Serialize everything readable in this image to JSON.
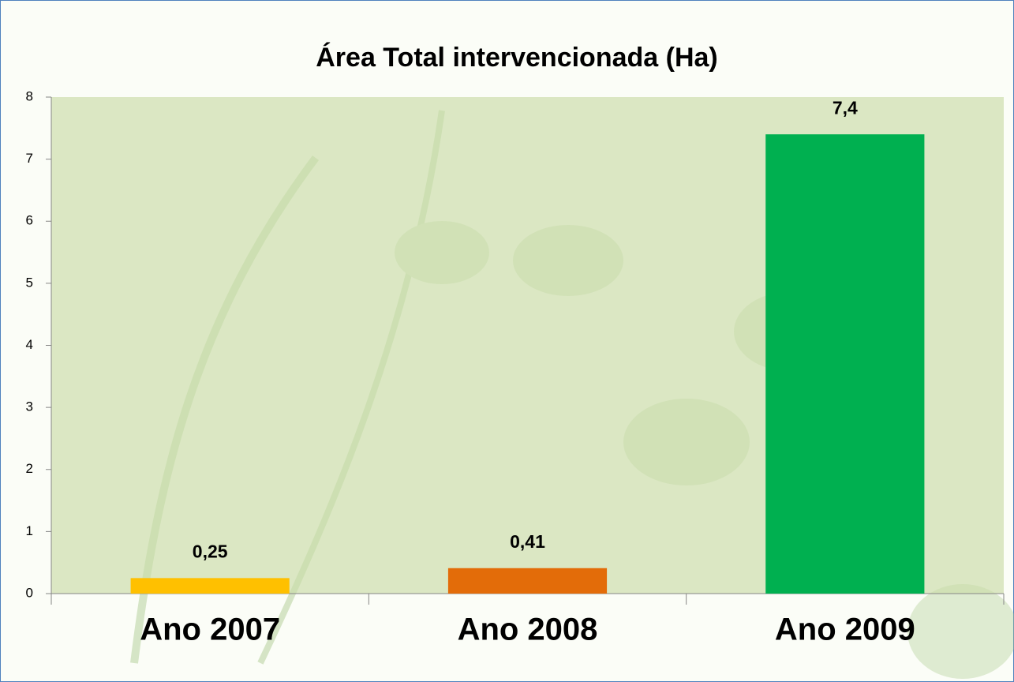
{
  "chart_data": {
    "type": "bar",
    "title": "Área Total  intervencionada  (Ha)",
    "categories": [
      "Ano 2007",
      "Ano 2008",
      "Ano 2009"
    ],
    "values": [
      0.25,
      0.41,
      7.4
    ],
    "value_labels": [
      "0,25",
      "0,41",
      "7,4"
    ],
    "colors": [
      "#ffc000",
      "#e36c09",
      "#00b050"
    ],
    "ylim": [
      0,
      8
    ],
    "yticks": [
      0,
      1,
      2,
      3,
      4,
      5,
      6,
      7,
      8
    ],
    "grid": false
  }
}
